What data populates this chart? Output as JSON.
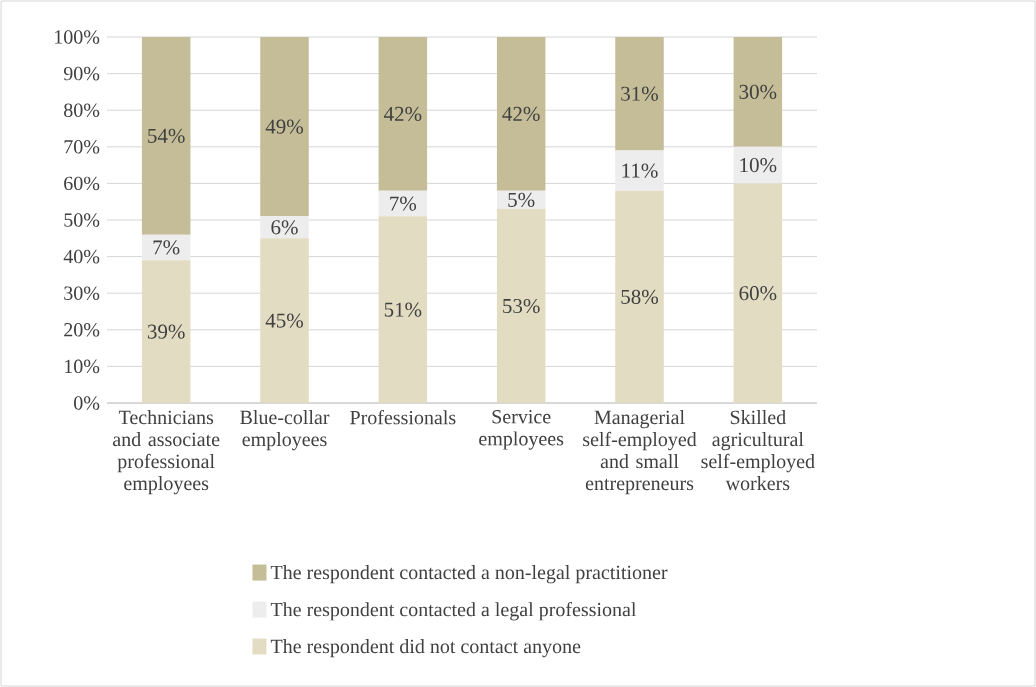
{
  "chart_data": {
    "type": "bar",
    "stacked": true,
    "categories": [
      "Technicians and associate professional employees",
      "Blue-collar employees",
      "Professionals",
      "Service employees",
      "Managerial self-employed and small entrepreneurs",
      "Skilled agricultural self-employed workers"
    ],
    "series": [
      {
        "name": "The respondent did not contact anyone",
        "color": "#e2dcc2",
        "values": [
          39,
          45,
          51,
          53,
          58,
          60
        ],
        "value_labels": [
          "39%",
          "45%",
          "51%",
          "53%",
          "58%",
          "60%"
        ]
      },
      {
        "name": "The respondent contacted a legal professional",
        "color": "#ededed",
        "values": [
          7,
          6,
          7,
          5,
          11,
          10
        ],
        "value_labels": [
          "7%",
          "6%",
          "7%",
          "5%",
          "11%",
          "10%"
        ]
      },
      {
        "name": "The respondent contacted a non-legal practitioner",
        "color": "#c4bd97",
        "values": [
          54,
          49,
          42,
          42,
          31,
          30
        ],
        "value_labels": [
          "54%",
          "49%",
          "42%",
          "42%",
          "31%",
          "30%"
        ]
      }
    ],
    "ylim": [
      0,
      100
    ],
    "yticks": [
      {
        "value": 0,
        "label": "0%"
      },
      {
        "value": 10,
        "label": "10%"
      },
      {
        "value": 20,
        "label": "20%"
      },
      {
        "value": 30,
        "label": "30%"
      },
      {
        "value": 40,
        "label": "40%"
      },
      {
        "value": 50,
        "label": "50%"
      },
      {
        "value": 60,
        "label": "60%"
      },
      {
        "value": 70,
        "label": "70%"
      },
      {
        "value": 80,
        "label": "80%"
      },
      {
        "value": 90,
        "label": "90%"
      },
      {
        "value": 100,
        "label": "100%"
      }
    ],
    "grid": "y",
    "legend": "bottom"
  }
}
